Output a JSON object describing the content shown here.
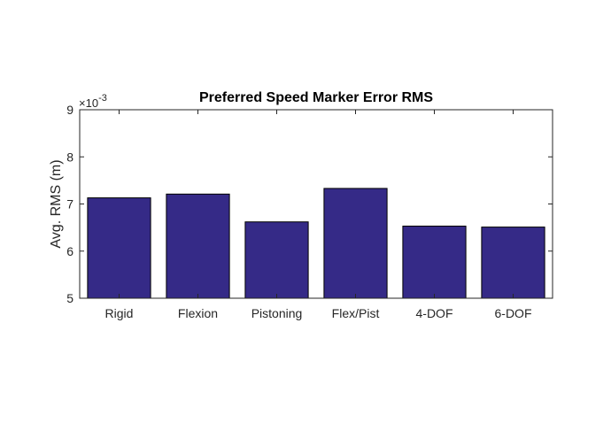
{
  "chart_data": {
    "type": "bar",
    "title": "Preferred Speed Marker Error RMS",
    "xlabel": "",
    "ylabel": "Avg. RMS (m)",
    "categories": [
      "Rigid",
      "Flexion",
      "Pistoning",
      "Flex/Pist",
      "4-DOF",
      "6-DOF"
    ],
    "values": [
      0.00713,
      0.00721,
      0.00662,
      0.00733,
      0.00653,
      0.00651
    ],
    "ylim": [
      0.005,
      0.009
    ],
    "yticks": [
      0.005,
      0.006,
      0.007,
      0.008,
      0.009
    ],
    "ytick_labels": [
      "5",
      "6",
      "7",
      "8",
      "9"
    ],
    "y_multiplier": {
      "base": "10",
      "exponent": "-3",
      "symbol": "×"
    },
    "bar_color": "#352a87",
    "edge_color": "#000000",
    "grid": false,
    "legend": "none"
  }
}
